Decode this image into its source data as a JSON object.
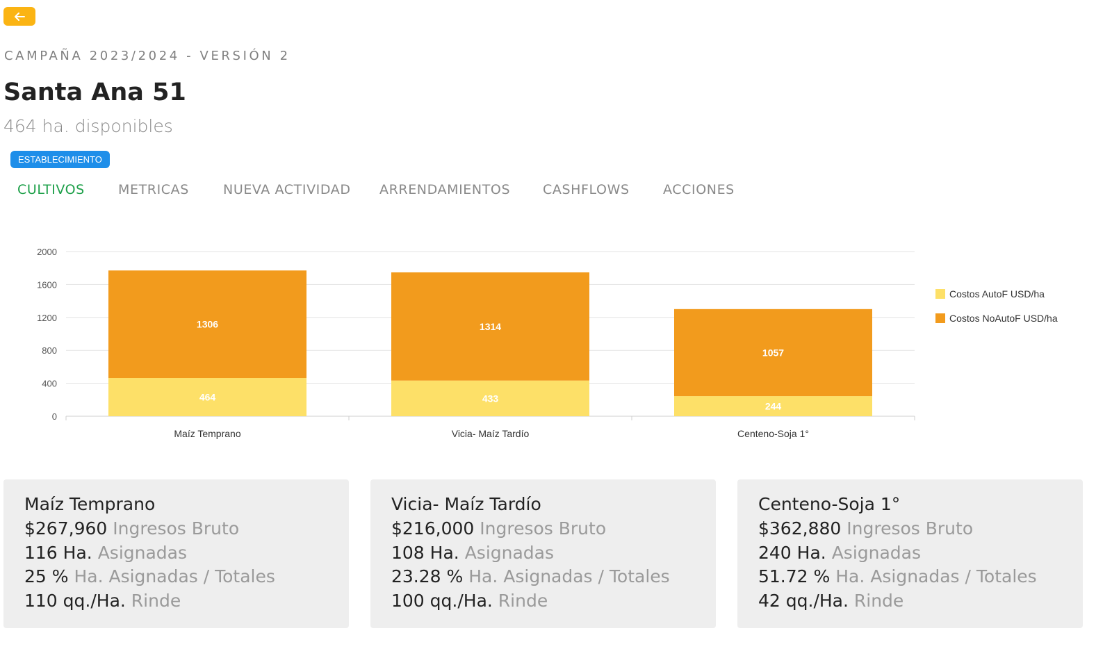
{
  "header": {
    "back_icon": "arrow-left-icon",
    "campaign": "CAMPAÑA 2023/2024 - VERSIÓN 2",
    "title": "Santa Ana 51",
    "subtitle": "464 ha. disponibles",
    "badge": "ESTABLECIMIENTO"
  },
  "tabs": [
    {
      "label": "CULTIVOS",
      "active": true
    },
    {
      "label": "METRICAS",
      "active": false
    },
    {
      "label": "NUEVA ACTIVIDAD",
      "active": false
    },
    {
      "label": "ARRENDAMIENTOS",
      "active": false
    },
    {
      "label": "CASHFLOWS",
      "active": false
    },
    {
      "label": "ACCIONES",
      "active": false
    }
  ],
  "colors": {
    "accent": "#fbb413",
    "badge": "#1e8ee9",
    "active_tab": "#1ea04a",
    "series_autof": "#fde068",
    "series_noautof": "#f29b1d"
  },
  "chart_data": {
    "type": "bar",
    "stacked": true,
    "categories": [
      "Maíz Temprano",
      "Vicia- Maíz Tardío",
      "Centeno-Soja 1°"
    ],
    "series": [
      {
        "name": "Costos AutoF USD/ha",
        "values": [
          464,
          433,
          244
        ],
        "color": "#fde068"
      },
      {
        "name": "Costos NoAutoF USD/ha",
        "values": [
          1306,
          1314,
          1057
        ],
        "color": "#f29b1d"
      }
    ],
    "yticks": [
      0,
      400,
      800,
      1200,
      1600,
      2000
    ],
    "ylim": [
      0,
      2000
    ],
    "grid": true,
    "legend": "right"
  },
  "cards": [
    {
      "name": "Maíz Temprano",
      "rows": [
        {
          "value": "$267,960",
          "label": "Ingresos Bruto"
        },
        {
          "value": "116 Ha.",
          "label": "Asignadas"
        },
        {
          "value": "25 %",
          "label": "Ha. Asignadas / Totales"
        },
        {
          "value": "110 qq./Ha.",
          "label": "Rinde"
        }
      ]
    },
    {
      "name": "Vicia- Maíz Tardío",
      "rows": [
        {
          "value": "$216,000",
          "label": "Ingresos Bruto"
        },
        {
          "value": "108 Ha.",
          "label": "Asignadas"
        },
        {
          "value": "23.28 %",
          "label": "Ha. Asignadas / Totales"
        },
        {
          "value": "100 qq./Ha.",
          "label": "Rinde"
        }
      ]
    },
    {
      "name": "Centeno-Soja 1°",
      "rows": [
        {
          "value": "$362,880",
          "label": "Ingresos Bruto"
        },
        {
          "value": "240 Ha.",
          "label": "Asignadas"
        },
        {
          "value": "51.72 %",
          "label": "Ha. Asignadas / Totales"
        },
        {
          "value": "42 qq./Ha.",
          "label": "Rinde"
        }
      ]
    }
  ]
}
